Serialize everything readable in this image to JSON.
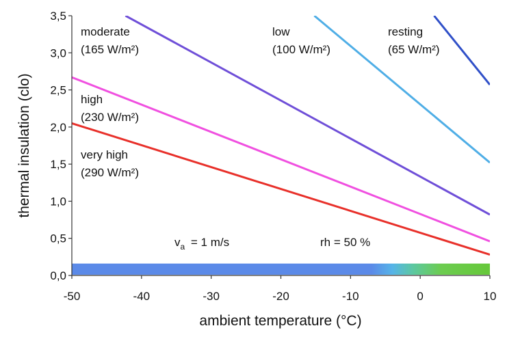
{
  "chart_data": {
    "type": "line",
    "title": "",
    "xlabel": "ambient temperature (°C)",
    "ylabel": "thermal insulation (clo)",
    "xlim": [
      -50,
      10
    ],
    "ylim": [
      0,
      3.5
    ],
    "x_ticks": [
      "-50",
      "-40",
      "-30",
      "-20",
      "-10",
      "0",
      "10"
    ],
    "y_ticks": [
      "0,0",
      "0,5",
      "1,0",
      "1,5",
      "2,0",
      "2,5",
      "3,0",
      "3,5"
    ],
    "grid": false,
    "series": [
      {
        "name": "moderate",
        "name_lines": [
          "moderate",
          "(165 W/m²)"
        ],
        "color": "#6f4fd8",
        "x": [
          -42.3,
          10
        ],
        "y": [
          3.5,
          0.82
        ]
      },
      {
        "name": "low",
        "name_lines": [
          "low",
          "(100 W/m²)"
        ],
        "color": "#4faee6",
        "x": [
          -15.2,
          10
        ],
        "y": [
          3.5,
          1.52
        ]
      },
      {
        "name": "resting",
        "name_lines": [
          "resting",
          "(65 W/m²)"
        ],
        "color": "#3050c8",
        "x": [
          2.0,
          10
        ],
        "y": [
          3.5,
          2.57
        ]
      },
      {
        "name": "high",
        "name_lines": [
          "high",
          "(230 W/m²)"
        ],
        "color": "#f050e0",
        "x": [
          -50,
          10
        ],
        "y": [
          2.67,
          0.46
        ]
      },
      {
        "name": "very high",
        "name_lines": [
          "very high",
          "(290 W/m²)"
        ],
        "color": "#e8302a",
        "x": [
          -50,
          10
        ],
        "y": [
          2.05,
          0.28
        ]
      }
    ],
    "annotations": {
      "va_main": "v",
      "va_sub": "a",
      "va_rest": " = 1 m/s",
      "rh": "rh = 50 %"
    },
    "color_band": {
      "x_start": -50,
      "x_end": 10,
      "y_bottom": 0.0,
      "y_top": 0.16,
      "stops": [
        {
          "x": -50,
          "color": "#5b8ae8"
        },
        {
          "x": -7,
          "color": "#5b8ae8"
        },
        {
          "x": -4,
          "color": "#56b4e8"
        },
        {
          "x": -1,
          "color": "#5cc8a0"
        },
        {
          "x": 3,
          "color": "#6ccc50"
        },
        {
          "x": 10,
          "color": "#66c83a"
        }
      ]
    }
  }
}
